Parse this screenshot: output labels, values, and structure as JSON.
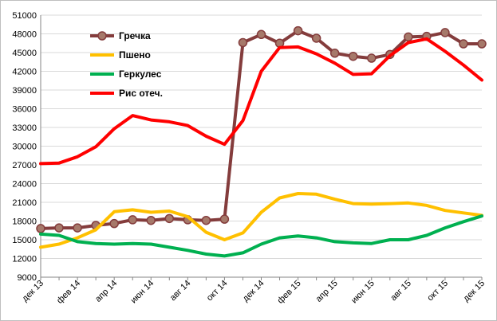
{
  "chart_data": {
    "type": "line",
    "title": "",
    "xlabel": "",
    "ylabel": "",
    "ylim": [
      9000,
      51000
    ],
    "yticks": [
      "51000",
      "48000",
      "45000",
      "42000",
      "39000",
      "36000",
      "33000",
      "30000",
      "27000",
      "24000",
      "21000",
      "18000",
      "15000",
      "12000",
      "9000"
    ],
    "x_tick_labels": [
      "дек 13",
      "фев 14",
      "апр 14",
      "июн 14",
      "авг 14",
      "окт 14",
      "дек 14",
      "фев 15",
      "апр 15",
      "июн 15",
      "авг 15",
      "окт 15",
      "дек 15"
    ],
    "x": [
      "дек 13",
      "янв 14",
      "фев 14",
      "мар 14",
      "апр 14",
      "май 14",
      "июн 14",
      "июл 14",
      "авг 14",
      "сен 14",
      "окт 14",
      "ноя 14",
      "дек 14",
      "янв 15",
      "фев 15",
      "мар 15",
      "апр 15",
      "май 15",
      "июн 15",
      "июл 15",
      "авг 15",
      "сен 15",
      "окт 15",
      "ноя 15",
      "дек 15"
    ],
    "grid": "horizontal",
    "legend_position": "top-left-inside",
    "series": [
      {
        "name": "Гречка",
        "color": "#843c3c",
        "marker_color": "#a6796a",
        "markers": true,
        "values": [
          16800,
          16900,
          16900,
          17300,
          17600,
          18200,
          18100,
          18400,
          18200,
          18100,
          18300,
          46600,
          47900,
          46500,
          48500,
          47300,
          44900,
          44400,
          44100,
          44700,
          47500,
          47600,
          48200,
          46400,
          46400
        ]
      },
      {
        "name": "Пшено",
        "color": "#ffc000",
        "markers": false,
        "values": [
          13800,
          14300,
          15300,
          16600,
          19500,
          19800,
          19400,
          19600,
          18700,
          16200,
          15000,
          16100,
          19400,
          21700,
          22400,
          22300,
          21500,
          20800,
          20700,
          20800,
          20900,
          20500,
          19700,
          19300,
          18900
        ]
      },
      {
        "name": "Геркулес",
        "color": "#00b050",
        "markers": false,
        "values": [
          15900,
          15700,
          14700,
          14400,
          14300,
          14400,
          14300,
          13800,
          13300,
          12700,
          12400,
          12900,
          14300,
          15300,
          15600,
          15300,
          14700,
          14500,
          14400,
          15000,
          15000,
          15700,
          16900,
          17900,
          18800
        ]
      },
      {
        "name": "Рис отеч.",
        "color": "#ff0000",
        "markers": false,
        "values": [
          27200,
          27300,
          28300,
          29900,
          32800,
          34900,
          34200,
          33900,
          33300,
          31600,
          30300,
          34100,
          42000,
          45800,
          45900,
          44800,
          43300,
          41500,
          41600,
          44500,
          46600,
          47200,
          45200,
          43000,
          40600
        ]
      }
    ]
  }
}
